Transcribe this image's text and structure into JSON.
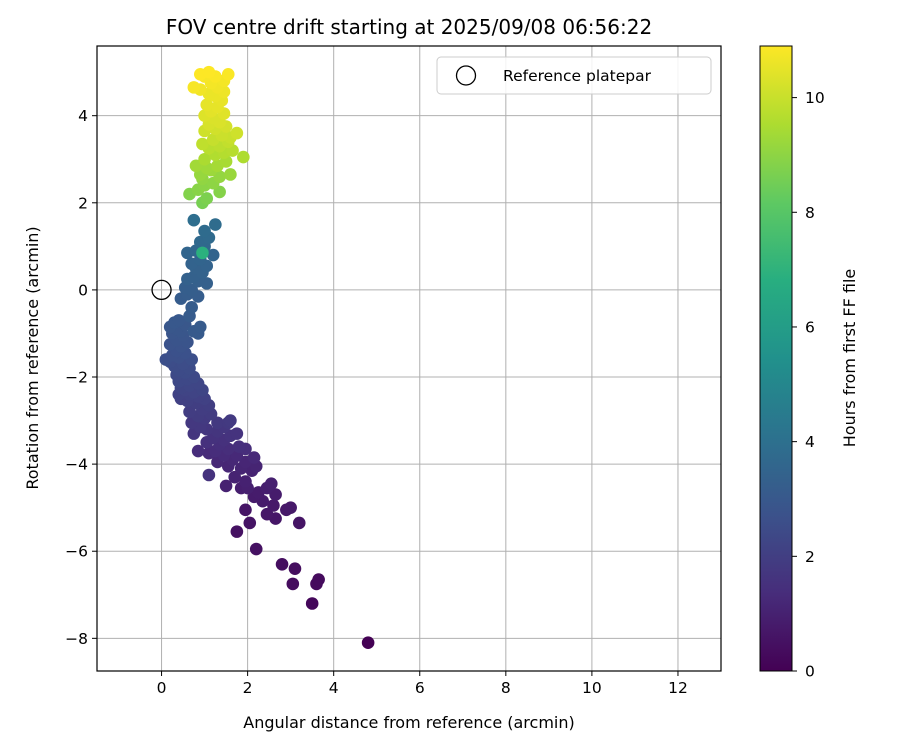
{
  "chart_data": {
    "type": "scatter",
    "title": "FOV centre drift starting at 2025/09/08 06:56:22",
    "xlabel": "Angular distance from reference (arcmin)",
    "ylabel": "Rotation from reference (arcmin)",
    "xlim": [
      -1.5,
      13
    ],
    "ylim": [
      -8.75,
      5.6
    ],
    "xticks": [
      0,
      2,
      4,
      6,
      8,
      10,
      12
    ],
    "yticks": [
      -8,
      -6,
      -4,
      -2,
      0,
      2,
      4
    ],
    "grid": true,
    "legend": {
      "placement": "top-right",
      "entries": [
        "Reference platepar"
      ]
    },
    "reference_point": {
      "name": "Reference platepar",
      "x": 0,
      "y": 0
    },
    "colorbar": {
      "label": "Hours from first FF file",
      "colormap": "viridis",
      "range": [
        0,
        10.9
      ],
      "ticks": [
        0,
        2,
        4,
        6,
        8,
        10
      ]
    },
    "points": [
      [
        4.8,
        -8.1,
        0.0
      ],
      [
        3.5,
        -7.2,
        0.2
      ],
      [
        3.6,
        -6.75,
        0.3
      ],
      [
        3.65,
        -6.65,
        0.3
      ],
      [
        3.05,
        -6.75,
        0.35
      ],
      [
        3.1,
        -6.4,
        0.4
      ],
      [
        2.8,
        -6.3,
        0.4
      ],
      [
        2.2,
        -5.95,
        0.5
      ],
      [
        1.75,
        -5.55,
        0.5
      ],
      [
        2.05,
        -5.35,
        0.55
      ],
      [
        1.95,
        -5.05,
        0.6
      ],
      [
        3.2,
        -5.35,
        0.6
      ],
      [
        2.65,
        -5.25,
        0.65
      ],
      [
        2.45,
        -5.15,
        0.7
      ],
      [
        2.9,
        -5.05,
        0.7
      ],
      [
        3.0,
        -5.0,
        0.75
      ],
      [
        2.6,
        -4.95,
        0.75
      ],
      [
        2.35,
        -4.85,
        0.8
      ],
      [
        2.15,
        -4.75,
        0.8
      ],
      [
        2.65,
        -4.7,
        0.85
      ],
      [
        2.25,
        -4.65,
        0.85
      ],
      [
        2.45,
        -4.55,
        0.9
      ],
      [
        1.85,
        -4.55,
        0.9
      ],
      [
        2.0,
        -4.55,
        0.95
      ],
      [
        2.55,
        -4.45,
        0.95
      ],
      [
        1.5,
        -4.5,
        1.0
      ],
      [
        1.95,
        -4.4,
        1.0
      ],
      [
        1.7,
        -4.3,
        1.05
      ],
      [
        2.1,
        -4.15,
        1.05
      ],
      [
        1.85,
        -4.1,
        1.1
      ],
      [
        2.2,
        -4.05,
        1.1
      ],
      [
        1.55,
        -4.05,
        1.15
      ],
      [
        1.95,
        -3.95,
        1.15
      ],
      [
        1.3,
        -3.95,
        1.2
      ],
      [
        1.65,
        -3.9,
        1.2
      ],
      [
        2.15,
        -3.85,
        1.25
      ],
      [
        1.75,
        -3.8,
        1.25
      ],
      [
        1.45,
        -3.8,
        1.3
      ],
      [
        1.1,
        -3.75,
        1.3
      ],
      [
        0.85,
        -3.7,
        1.35
      ],
      [
        1.25,
        -3.7,
        1.35
      ],
      [
        1.55,
        -3.65,
        1.4
      ],
      [
        1.95,
        -3.65,
        1.4
      ],
      [
        1.8,
        -3.6,
        1.45
      ],
      [
        1.35,
        -3.55,
        1.45
      ],
      [
        1.05,
        -3.5,
        1.5
      ],
      [
        1.45,
        -3.45,
        1.5
      ],
      [
        1.1,
        -4.25,
        1.55
      ],
      [
        1.2,
        -3.4,
        1.55
      ],
      [
        1.6,
        -3.35,
        1.6
      ],
      [
        1.75,
        -3.3,
        1.6
      ],
      [
        0.75,
        -3.3,
        1.65
      ],
      [
        1.3,
        -3.25,
        1.65
      ],
      [
        1.05,
        -3.2,
        1.7
      ],
      [
        1.45,
        -3.15,
        1.7
      ],
      [
        0.9,
        -3.15,
        1.75
      ],
      [
        0.7,
        -3.05,
        1.75
      ],
      [
        1.3,
        -3.05,
        1.8
      ],
      [
        1.55,
        -3.05,
        1.8
      ],
      [
        1.6,
        -3.0,
        1.85
      ],
      [
        1.0,
        -2.95,
        1.85
      ],
      [
        0.85,
        -2.9,
        1.9
      ],
      [
        1.15,
        -2.85,
        1.9
      ],
      [
        0.65,
        -2.8,
        1.95
      ],
      [
        0.95,
        -2.75,
        1.95
      ],
      [
        1.1,
        -2.65,
        2.0
      ],
      [
        0.8,
        -2.6,
        2.0
      ],
      [
        0.6,
        -2.55,
        2.05
      ],
      [
        0.45,
        -2.5,
        2.05
      ],
      [
        1.0,
        -2.5,
        2.1
      ],
      [
        0.85,
        -2.45,
        2.1
      ],
      [
        0.65,
        -2.4,
        2.15
      ],
      [
        0.4,
        -2.4,
        2.15
      ],
      [
        0.75,
        -2.35,
        2.2
      ],
      [
        0.55,
        -2.3,
        2.2
      ],
      [
        0.95,
        -2.3,
        2.25
      ],
      [
        0.45,
        -2.25,
        2.25
      ],
      [
        0.65,
        -2.2,
        2.3
      ],
      [
        0.85,
        -2.15,
        2.3
      ],
      [
        0.4,
        -2.1,
        2.35
      ],
      [
        0.6,
        -2.05,
        2.35
      ],
      [
        0.75,
        -2.0,
        2.4
      ],
      [
        0.35,
        -1.95,
        2.4
      ],
      [
        0.55,
        -1.9,
        2.45
      ],
      [
        0.4,
        -1.85,
        2.45
      ],
      [
        0.65,
        -1.8,
        2.5
      ],
      [
        0.3,
        -1.75,
        2.5
      ],
      [
        0.5,
        -1.7,
        2.55
      ],
      [
        0.2,
        -1.65,
        2.55
      ],
      [
        0.1,
        -1.6,
        2.6
      ],
      [
        0.7,
        -1.6,
        2.6
      ],
      [
        0.4,
        -1.55,
        2.65
      ],
      [
        0.25,
        -1.5,
        2.65
      ],
      [
        0.55,
        -1.45,
        2.7
      ],
      [
        0.35,
        -1.4,
        2.7
      ],
      [
        0.45,
        -1.3,
        2.75
      ],
      [
        0.2,
        -1.25,
        2.75
      ],
      [
        0.6,
        -1.2,
        2.8
      ],
      [
        0.35,
        -1.15,
        2.8
      ],
      [
        0.5,
        -1.05,
        2.85
      ],
      [
        0.25,
        -1.0,
        2.85
      ],
      [
        0.45,
        -0.95,
        2.9
      ],
      [
        0.35,
        -0.9,
        2.9
      ],
      [
        0.2,
        -0.85,
        2.95
      ],
      [
        0.55,
        -0.8,
        2.95
      ],
      [
        0.3,
        -0.75,
        3.0
      ],
      [
        0.4,
        -0.7,
        3.0
      ],
      [
        0.85,
        -1.0,
        3.05
      ],
      [
        0.75,
        -0.95,
        3.05
      ],
      [
        0.9,
        -0.85,
        3.1
      ],
      [
        0.65,
        -0.6,
        3.1
      ],
      [
        0.7,
        -0.4,
        3.15
      ],
      [
        0.45,
        -0.2,
        3.15
      ],
      [
        0.6,
        -0.1,
        3.2
      ],
      [
        0.85,
        -0.15,
        3.2
      ],
      [
        0.7,
        0.0,
        3.25
      ],
      [
        0.55,
        0.05,
        3.25
      ],
      [
        1.05,
        0.15,
        3.3
      ],
      [
        0.85,
        0.2,
        3.3
      ],
      [
        0.6,
        0.25,
        3.35
      ],
      [
        0.75,
        0.3,
        3.35
      ],
      [
        0.95,
        0.4,
        3.4
      ],
      [
        0.8,
        0.5,
        3.4
      ],
      [
        1.05,
        0.55,
        3.45
      ],
      [
        0.7,
        0.6,
        3.45
      ],
      [
        0.9,
        0.7,
        3.5
      ],
      [
        1.2,
        0.8,
        3.5
      ],
      [
        0.6,
        0.85,
        3.55
      ],
      [
        0.8,
        0.9,
        3.6
      ],
      [
        1.0,
        1.0,
        3.65
      ],
      [
        0.9,
        1.1,
        3.7
      ],
      [
        1.1,
        1.2,
        3.75
      ],
      [
        1.0,
        1.35,
        3.8
      ],
      [
        1.25,
        1.5,
        3.85
      ],
      [
        0.75,
        1.6,
        3.9
      ],
      [
        0.95,
        0.85,
        6.9
      ],
      [
        0.95,
        2.0,
        8.6
      ],
      [
        1.05,
        2.1,
        8.7
      ],
      [
        0.65,
        2.2,
        8.8
      ],
      [
        1.35,
        2.25,
        8.85
      ],
      [
        0.85,
        2.3,
        8.9
      ],
      [
        1.0,
        2.4,
        8.95
      ],
      [
        1.2,
        2.45,
        9.0
      ],
      [
        0.95,
        2.55,
        9.05
      ],
      [
        1.35,
        2.6,
        9.1
      ],
      [
        0.9,
        2.65,
        9.15
      ],
      [
        1.6,
        2.65,
        9.2
      ],
      [
        1.15,
        2.75,
        9.25
      ],
      [
        1.05,
        2.8,
        9.3
      ],
      [
        0.8,
        2.85,
        9.35
      ],
      [
        1.3,
        2.85,
        9.4
      ],
      [
        1.5,
        2.95,
        9.45
      ],
      [
        1.0,
        3.0,
        9.5
      ],
      [
        1.9,
        3.05,
        9.55
      ],
      [
        1.25,
        3.1,
        9.6
      ],
      [
        1.45,
        3.15,
        9.65
      ],
      [
        1.65,
        3.2,
        9.7
      ],
      [
        1.1,
        3.25,
        9.75
      ],
      [
        1.35,
        3.3,
        9.8
      ],
      [
        0.95,
        3.35,
        9.85
      ],
      [
        1.55,
        3.4,
        9.9
      ],
      [
        1.2,
        3.45,
        9.95
      ],
      [
        1.6,
        3.5,
        10.0
      ],
      [
        1.4,
        3.55,
        10.05
      ],
      [
        1.75,
        3.6,
        10.1
      ],
      [
        1.0,
        3.65,
        10.1
      ],
      [
        1.25,
        3.7,
        10.15
      ],
      [
        1.5,
        3.75,
        10.2
      ],
      [
        1.1,
        3.8,
        10.25
      ],
      [
        1.35,
        3.85,
        10.3
      ],
      [
        1.2,
        3.95,
        10.3
      ],
      [
        1.0,
        4.0,
        10.35
      ],
      [
        1.45,
        4.05,
        10.4
      ],
      [
        1.15,
        4.1,
        10.45
      ],
      [
        1.3,
        4.2,
        10.5
      ],
      [
        1.05,
        4.25,
        10.5
      ],
      [
        1.4,
        4.35,
        10.55
      ],
      [
        1.25,
        4.45,
        10.6
      ],
      [
        1.1,
        4.5,
        10.6
      ],
      [
        1.45,
        4.55,
        10.65
      ],
      [
        1.3,
        4.65,
        10.7
      ],
      [
        0.9,
        4.6,
        10.7
      ],
      [
        1.15,
        4.75,
        10.75
      ],
      [
        1.45,
        4.8,
        10.75
      ],
      [
        0.75,
        4.65,
        10.8
      ],
      [
        1.0,
        4.9,
        10.8
      ],
      [
        1.25,
        4.9,
        10.85
      ],
      [
        1.55,
        4.95,
        10.85
      ],
      [
        0.9,
        4.95,
        10.9
      ],
      [
        1.1,
        5.0,
        10.9
      ]
    ]
  }
}
